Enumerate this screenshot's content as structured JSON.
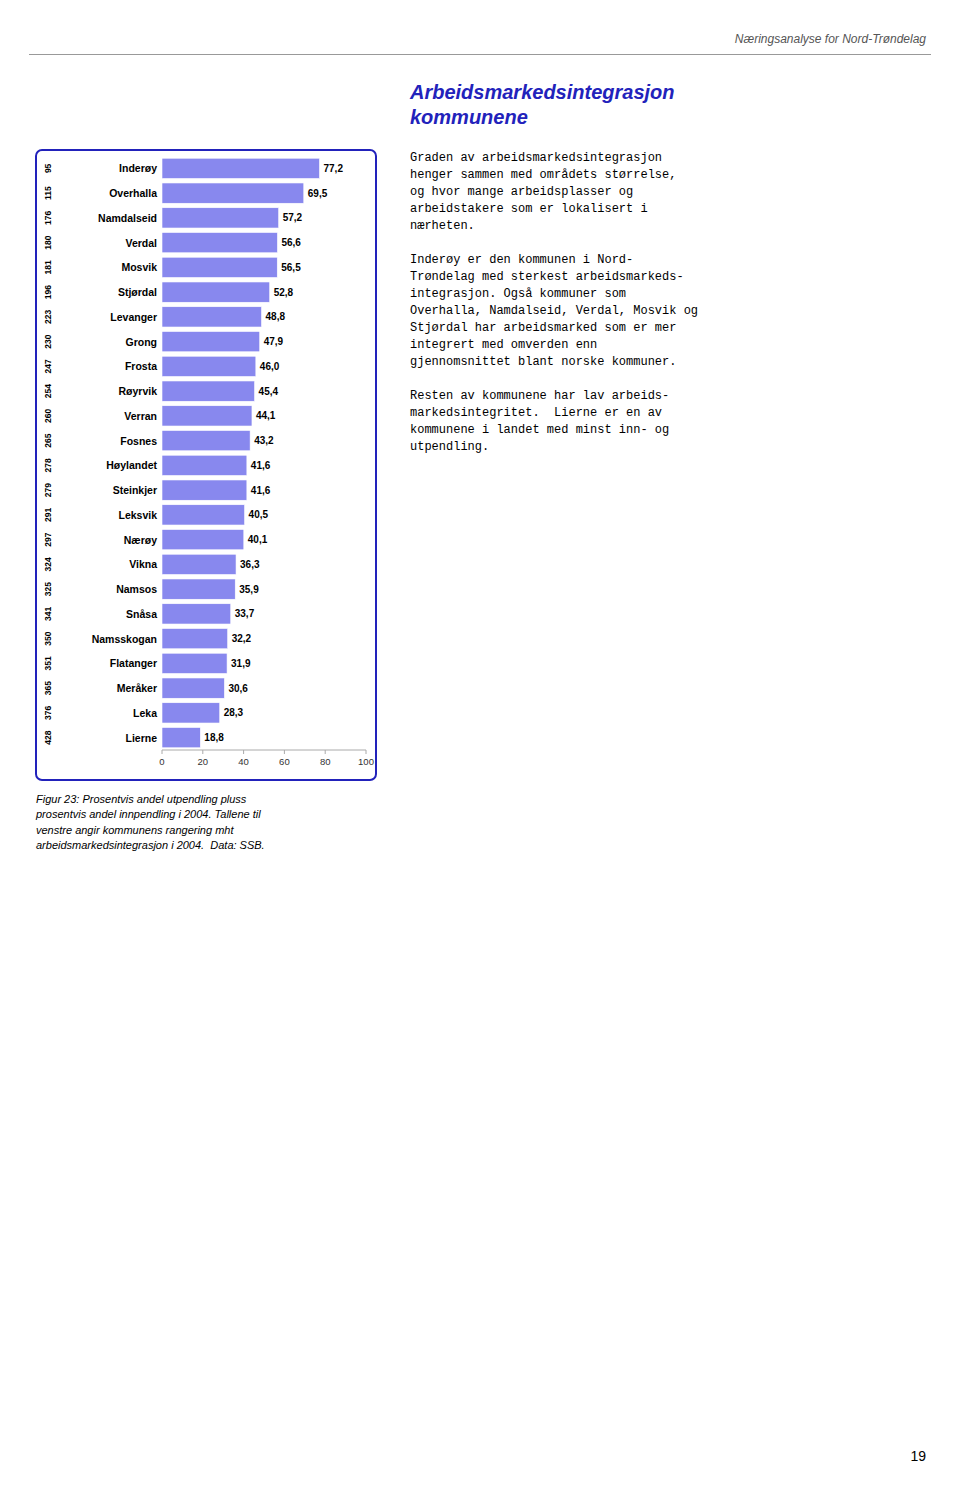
{
  "chart_data": {
    "type": "bar",
    "orientation": "horizontal",
    "categories": [
      "Inderøy",
      "Overhalla",
      "Namdalseid",
      "Verdal",
      "Mosvik",
      "Stjørdal",
      "Levanger",
      "Grong",
      "Frosta",
      "Røyrvik",
      "Verran",
      "Fosnes",
      "Høylandet",
      "Steinkjer",
      "Leksvik",
      "Nærøy",
      "Vikna",
      "Namsos",
      "Snåsa",
      "Namsskogan",
      "Flatanger",
      "Meråker",
      "Leka",
      "Lierne"
    ],
    "values": [
      77.2,
      69.5,
      57.2,
      56.6,
      56.5,
      52.8,
      48.8,
      47.9,
      46.0,
      45.4,
      44.1,
      43.2,
      41.6,
      41.6,
      40.5,
      40.1,
      36.3,
      35.9,
      33.7,
      32.2,
      31.9,
      30.6,
      28.3,
      18.8
    ],
    "value_labels": [
      "77,2",
      "69,5",
      "57,2",
      "56,6",
      "56,5",
      "52,8",
      "48,8",
      "47,9",
      "46,0",
      "45,4",
      "44,1",
      "43,2",
      "41,6",
      "41,6",
      "40,5",
      "40,1",
      "36,3",
      "35,9",
      "33,7",
      "32,2",
      "31,9",
      "30,6",
      "28,3",
      "18,8"
    ],
    "ranks": [
      95,
      115,
      176,
      180,
      181,
      196,
      223,
      230,
      247,
      254,
      260,
      265,
      278,
      279,
      291,
      297,
      324,
      325,
      341,
      350,
      351,
      365,
      376,
      428
    ],
    "data_labels": true,
    "color": "#8888ee",
    "xlim": [
      0,
      100
    ],
    "xticks": [
      0,
      20,
      40,
      60,
      80,
      100
    ],
    "grid": false,
    "caption": "Figur 23: Prosentvis andel utpendling pluss\nprosentvis andel innpendling i 2004. Tallene til\nvenstre angir kommunens rangering mht\narbeidsmarkedsintegrasjon i 2004.  Data: SSB."
  },
  "header": "Næringsanalyse for Nord-Trøndelag",
  "heading": "Arbeidsmarkedsintegrasjon\nkommunene",
  "paragraphs": [
    "Graden av arbeidsmarkedsintegrasjon\nhenger sammen med områdets størrelse,\nog hvor mange arbeidsplasser og\narbeidstakere som er lokalisert i\nnærheten.",
    "Inderøy er den kommunen i Nord-\nTrøndelag med sterkest arbeidsmarkeds-\nintegrasjon. Også kommuner som\nOverhalla, Namdalseid, Verdal, Mosvik og\nStjørdal har arbeidsmarked som er mer\nintegrert med omverden enn\ngjennomsnittet blant norske kommuner.",
    "Resten av kommunene har lav arbeids-\nmarkedsintegritet.  Lierne er en av\nkommunene i landet med minst inn- og\nutpendling."
  ],
  "page_number": "19"
}
